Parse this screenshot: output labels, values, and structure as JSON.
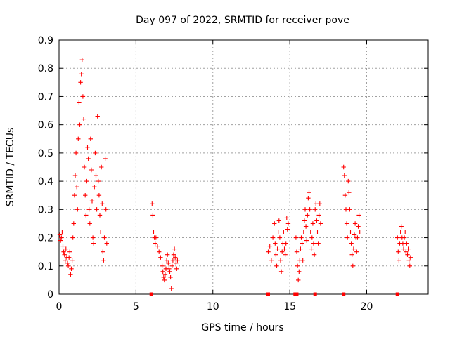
{
  "chart_data": {
    "type": "scatter",
    "title": "Day 097 of 2022, SRMTID for receiver pove",
    "xlabel": "GPS time / hours",
    "ylabel": "SRMTID / TECUs",
    "xlim": [
      0,
      24
    ],
    "ylim": [
      0,
      0.9
    ],
    "x_ticks": [
      0,
      5,
      10,
      15,
      20
    ],
    "y_ticks": [
      0,
      0.1,
      0.2,
      0.3,
      0.4,
      0.5,
      0.6,
      0.7,
      0.8,
      0.9
    ],
    "grid": true,
    "marker": "+",
    "color": "#ff0000",
    "series": [
      {
        "name": "SRMTID",
        "points": [
          [
            0.05,
            0.21
          ],
          [
            0.1,
            0.19
          ],
          [
            0.15,
            0.2
          ],
          [
            0.2,
            0.22
          ],
          [
            0.25,
            0.17
          ],
          [
            0.3,
            0.15
          ],
          [
            0.35,
            0.14
          ],
          [
            0.4,
            0.12
          ],
          [
            0.45,
            0.16
          ],
          [
            0.5,
            0.13
          ],
          [
            0.55,
            0.11
          ],
          [
            0.6,
            0.1
          ],
          [
            0.65,
            0.13
          ],
          [
            0.7,
            0.15
          ],
          [
            0.75,
            0.07
          ],
          [
            0.8,
            0.09
          ],
          [
            0.85,
            0.12
          ],
          [
            0.9,
            0.2
          ],
          [
            0.95,
            0.25
          ],
          [
            1.0,
            0.35
          ],
          [
            1.05,
            0.42
          ],
          [
            1.1,
            0.5
          ],
          [
            1.15,
            0.38
          ],
          [
            1.2,
            0.3
          ],
          [
            1.25,
            0.55
          ],
          [
            1.3,
            0.68
          ],
          [
            1.35,
            0.6
          ],
          [
            1.4,
            0.75
          ],
          [
            1.45,
            0.78
          ],
          [
            1.5,
            0.83
          ],
          [
            1.55,
            0.7
          ],
          [
            1.6,
            0.62
          ],
          [
            1.65,
            0.45
          ],
          [
            1.7,
            0.35
          ],
          [
            1.75,
            0.28
          ],
          [
            1.8,
            0.4
          ],
          [
            1.85,
            0.52
          ],
          [
            1.9,
            0.48
          ],
          [
            1.95,
            0.3
          ],
          [
            2.0,
            0.25
          ],
          [
            2.05,
            0.55
          ],
          [
            2.1,
            0.44
          ],
          [
            2.15,
            0.33
          ],
          [
            2.2,
            0.2
          ],
          [
            2.25,
            0.18
          ],
          [
            2.3,
            0.38
          ],
          [
            2.35,
            0.5
          ],
          [
            2.4,
            0.42
          ],
          [
            2.45,
            0.3
          ],
          [
            2.5,
            0.63
          ],
          [
            2.55,
            0.4
          ],
          [
            2.6,
            0.35
          ],
          [
            2.65,
            0.28
          ],
          [
            2.7,
            0.22
          ],
          [
            2.75,
            0.45
          ],
          [
            2.8,
            0.32
          ],
          [
            2.85,
            0.15
          ],
          [
            2.9,
            0.12
          ],
          [
            2.95,
            0.2
          ],
          [
            3.0,
            0.48
          ],
          [
            3.05,
            0.3
          ],
          [
            3.1,
            0.18
          ],
          [
            6.05,
            0.32
          ],
          [
            6.1,
            0.28
          ],
          [
            6.15,
            0.22
          ],
          [
            6.2,
            0.2
          ],
          [
            6.25,
            0.18
          ],
          [
            6.3,
            0.2
          ],
          [
            6.4,
            0.17
          ],
          [
            6.5,
            0.15
          ],
          [
            6.6,
            0.13
          ],
          [
            6.7,
            0.1
          ],
          [
            6.75,
            0.08
          ],
          [
            6.8,
            0.06
          ],
          [
            6.85,
            0.05
          ],
          [
            6.9,
            0.07
          ],
          [
            6.95,
            0.09
          ],
          [
            7.0,
            0.12
          ],
          [
            7.05,
            0.14
          ],
          [
            7.1,
            0.11
          ],
          [
            7.15,
            0.09
          ],
          [
            7.2,
            0.08
          ],
          [
            7.25,
            0.06
          ],
          [
            7.3,
            0.02
          ],
          [
            7.35,
            0.1
          ],
          [
            7.4,
            0.12
          ],
          [
            7.45,
            0.14
          ],
          [
            7.5,
            0.16
          ],
          [
            7.55,
            0.13
          ],
          [
            7.6,
            0.11
          ],
          [
            7.65,
            0.09
          ],
          [
            7.7,
            0.12
          ],
          [
            13.6,
            0.15
          ],
          [
            13.7,
            0.17
          ],
          [
            13.8,
            0.12
          ],
          [
            13.9,
            0.2
          ],
          [
            14.0,
            0.25
          ],
          [
            14.05,
            0.18
          ],
          [
            14.1,
            0.14
          ],
          [
            14.15,
            0.1
          ],
          [
            14.2,
            0.16
          ],
          [
            14.25,
            0.22
          ],
          [
            14.3,
            0.26
          ],
          [
            14.35,
            0.2
          ],
          [
            14.4,
            0.12
          ],
          [
            14.45,
            0.08
          ],
          [
            14.5,
            0.15
          ],
          [
            14.55,
            0.18
          ],
          [
            14.6,
            0.22
          ],
          [
            14.65,
            0.16
          ],
          [
            14.7,
            0.14
          ],
          [
            14.75,
            0.18
          ],
          [
            14.8,
            0.27
          ],
          [
            14.85,
            0.23
          ],
          [
            14.9,
            0.25
          ],
          [
            15.4,
            0.2
          ],
          [
            15.45,
            0.15
          ],
          [
            15.5,
            0.1
          ],
          [
            15.55,
            0.05
          ],
          [
            15.6,
            0.08
          ],
          [
            15.65,
            0.12
          ],
          [
            15.7,
            0.16
          ],
          [
            15.75,
            0.2
          ],
          [
            15.8,
            0.18
          ],
          [
            15.85,
            0.12
          ],
          [
            15.9,
            0.22
          ],
          [
            15.95,
            0.26
          ],
          [
            16.0,
            0.3
          ],
          [
            16.05,
            0.24
          ],
          [
            16.1,
            0.19
          ],
          [
            16.15,
            0.28
          ],
          [
            16.2,
            0.34
          ],
          [
            16.25,
            0.36
          ],
          [
            16.3,
            0.3
          ],
          [
            16.35,
            0.22
          ],
          [
            16.4,
            0.16
          ],
          [
            16.45,
            0.2
          ],
          [
            16.5,
            0.25
          ],
          [
            16.55,
            0.18
          ],
          [
            16.6,
            0.14
          ],
          [
            16.65,
            0.3
          ],
          [
            16.7,
            0.32
          ],
          [
            16.75,
            0.26
          ],
          [
            16.8,
            0.22
          ],
          [
            16.85,
            0.18
          ],
          [
            16.9,
            0.28
          ],
          [
            16.95,
            0.32
          ],
          [
            17.0,
            0.25
          ],
          [
            18.5,
            0.45
          ],
          [
            18.55,
            0.42
          ],
          [
            18.6,
            0.35
          ],
          [
            18.65,
            0.3
          ],
          [
            18.7,
            0.25
          ],
          [
            18.75,
            0.2
          ],
          [
            18.8,
            0.4
          ],
          [
            18.85,
            0.36
          ],
          [
            18.9,
            0.3
          ],
          [
            18.95,
            0.22
          ],
          [
            19.0,
            0.18
          ],
          [
            19.05,
            0.14
          ],
          [
            19.1,
            0.1
          ],
          [
            19.15,
            0.16
          ],
          [
            19.2,
            0.21
          ],
          [
            19.25,
            0.25
          ],
          [
            19.3,
            0.2
          ],
          [
            19.35,
            0.15
          ],
          [
            19.4,
            0.2
          ],
          [
            19.45,
            0.24
          ],
          [
            19.5,
            0.28
          ],
          [
            19.55,
            0.22
          ],
          [
            22.0,
            0.2
          ],
          [
            22.05,
            0.15
          ],
          [
            22.1,
            0.12
          ],
          [
            22.15,
            0.18
          ],
          [
            22.2,
            0.22
          ],
          [
            22.25,
            0.24
          ],
          [
            22.3,
            0.2
          ],
          [
            22.35,
            0.18
          ],
          [
            22.4,
            0.16
          ],
          [
            22.45,
            0.2
          ],
          [
            22.5,
            0.22
          ],
          [
            22.55,
            0.15
          ],
          [
            22.6,
            0.18
          ],
          [
            22.65,
            0.14
          ],
          [
            22.7,
            0.16
          ],
          [
            22.75,
            0.12
          ],
          [
            22.8,
            0.1
          ],
          [
            22.85,
            0.13
          ]
        ]
      }
    ],
    "gap_markers": {
      "name": "data-gap markers at zero",
      "x": [
        6.0,
        13.6,
        15.35,
        15.45,
        16.65,
        18.5,
        22.0
      ],
      "y": 0
    }
  }
}
